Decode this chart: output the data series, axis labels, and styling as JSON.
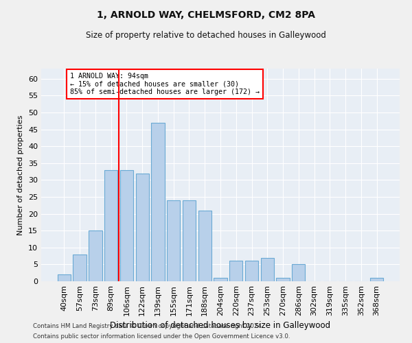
{
  "title1": "1, ARNOLD WAY, CHELMSFORD, CM2 8PA",
  "title2": "Size of property relative to detached houses in Galleywood",
  "xlabel": "Distribution of detached houses by size in Galleywood",
  "ylabel": "Number of detached properties",
  "categories": [
    "40sqm",
    "57sqm",
    "73sqm",
    "89sqm",
    "106sqm",
    "122sqm",
    "139sqm",
    "155sqm",
    "171sqm",
    "188sqm",
    "204sqm",
    "220sqm",
    "237sqm",
    "253sqm",
    "270sqm",
    "286sqm",
    "302sqm",
    "319sqm",
    "335sqm",
    "352sqm",
    "368sqm"
  ],
  "values": [
    2,
    8,
    15,
    33,
    33,
    32,
    47,
    24,
    24,
    21,
    1,
    6,
    6,
    7,
    1,
    5,
    0,
    0,
    0,
    0,
    1
  ],
  "bar_color": "#b8d0ea",
  "bar_edge_color": "#6aaad4",
  "vline_x": 3.5,
  "annotation_line1": "1 ARNOLD WAY: 94sqm",
  "annotation_line2": "← 15% of detached houses are smaller (30)",
  "annotation_line3": "85% of semi-detached houses are larger (172) →",
  "ylim": [
    0,
    63
  ],
  "yticks": [
    0,
    5,
    10,
    15,
    20,
    25,
    30,
    35,
    40,
    45,
    50,
    55,
    60
  ],
  "bg_color": "#e8eef5",
  "grid_color": "#ffffff",
  "fig_bg_color": "#f0f0f0",
  "footnote1": "Contains HM Land Registry data © Crown copyright and database right 2024.",
  "footnote2": "Contains public sector information licensed under the Open Government Licence v3.0."
}
